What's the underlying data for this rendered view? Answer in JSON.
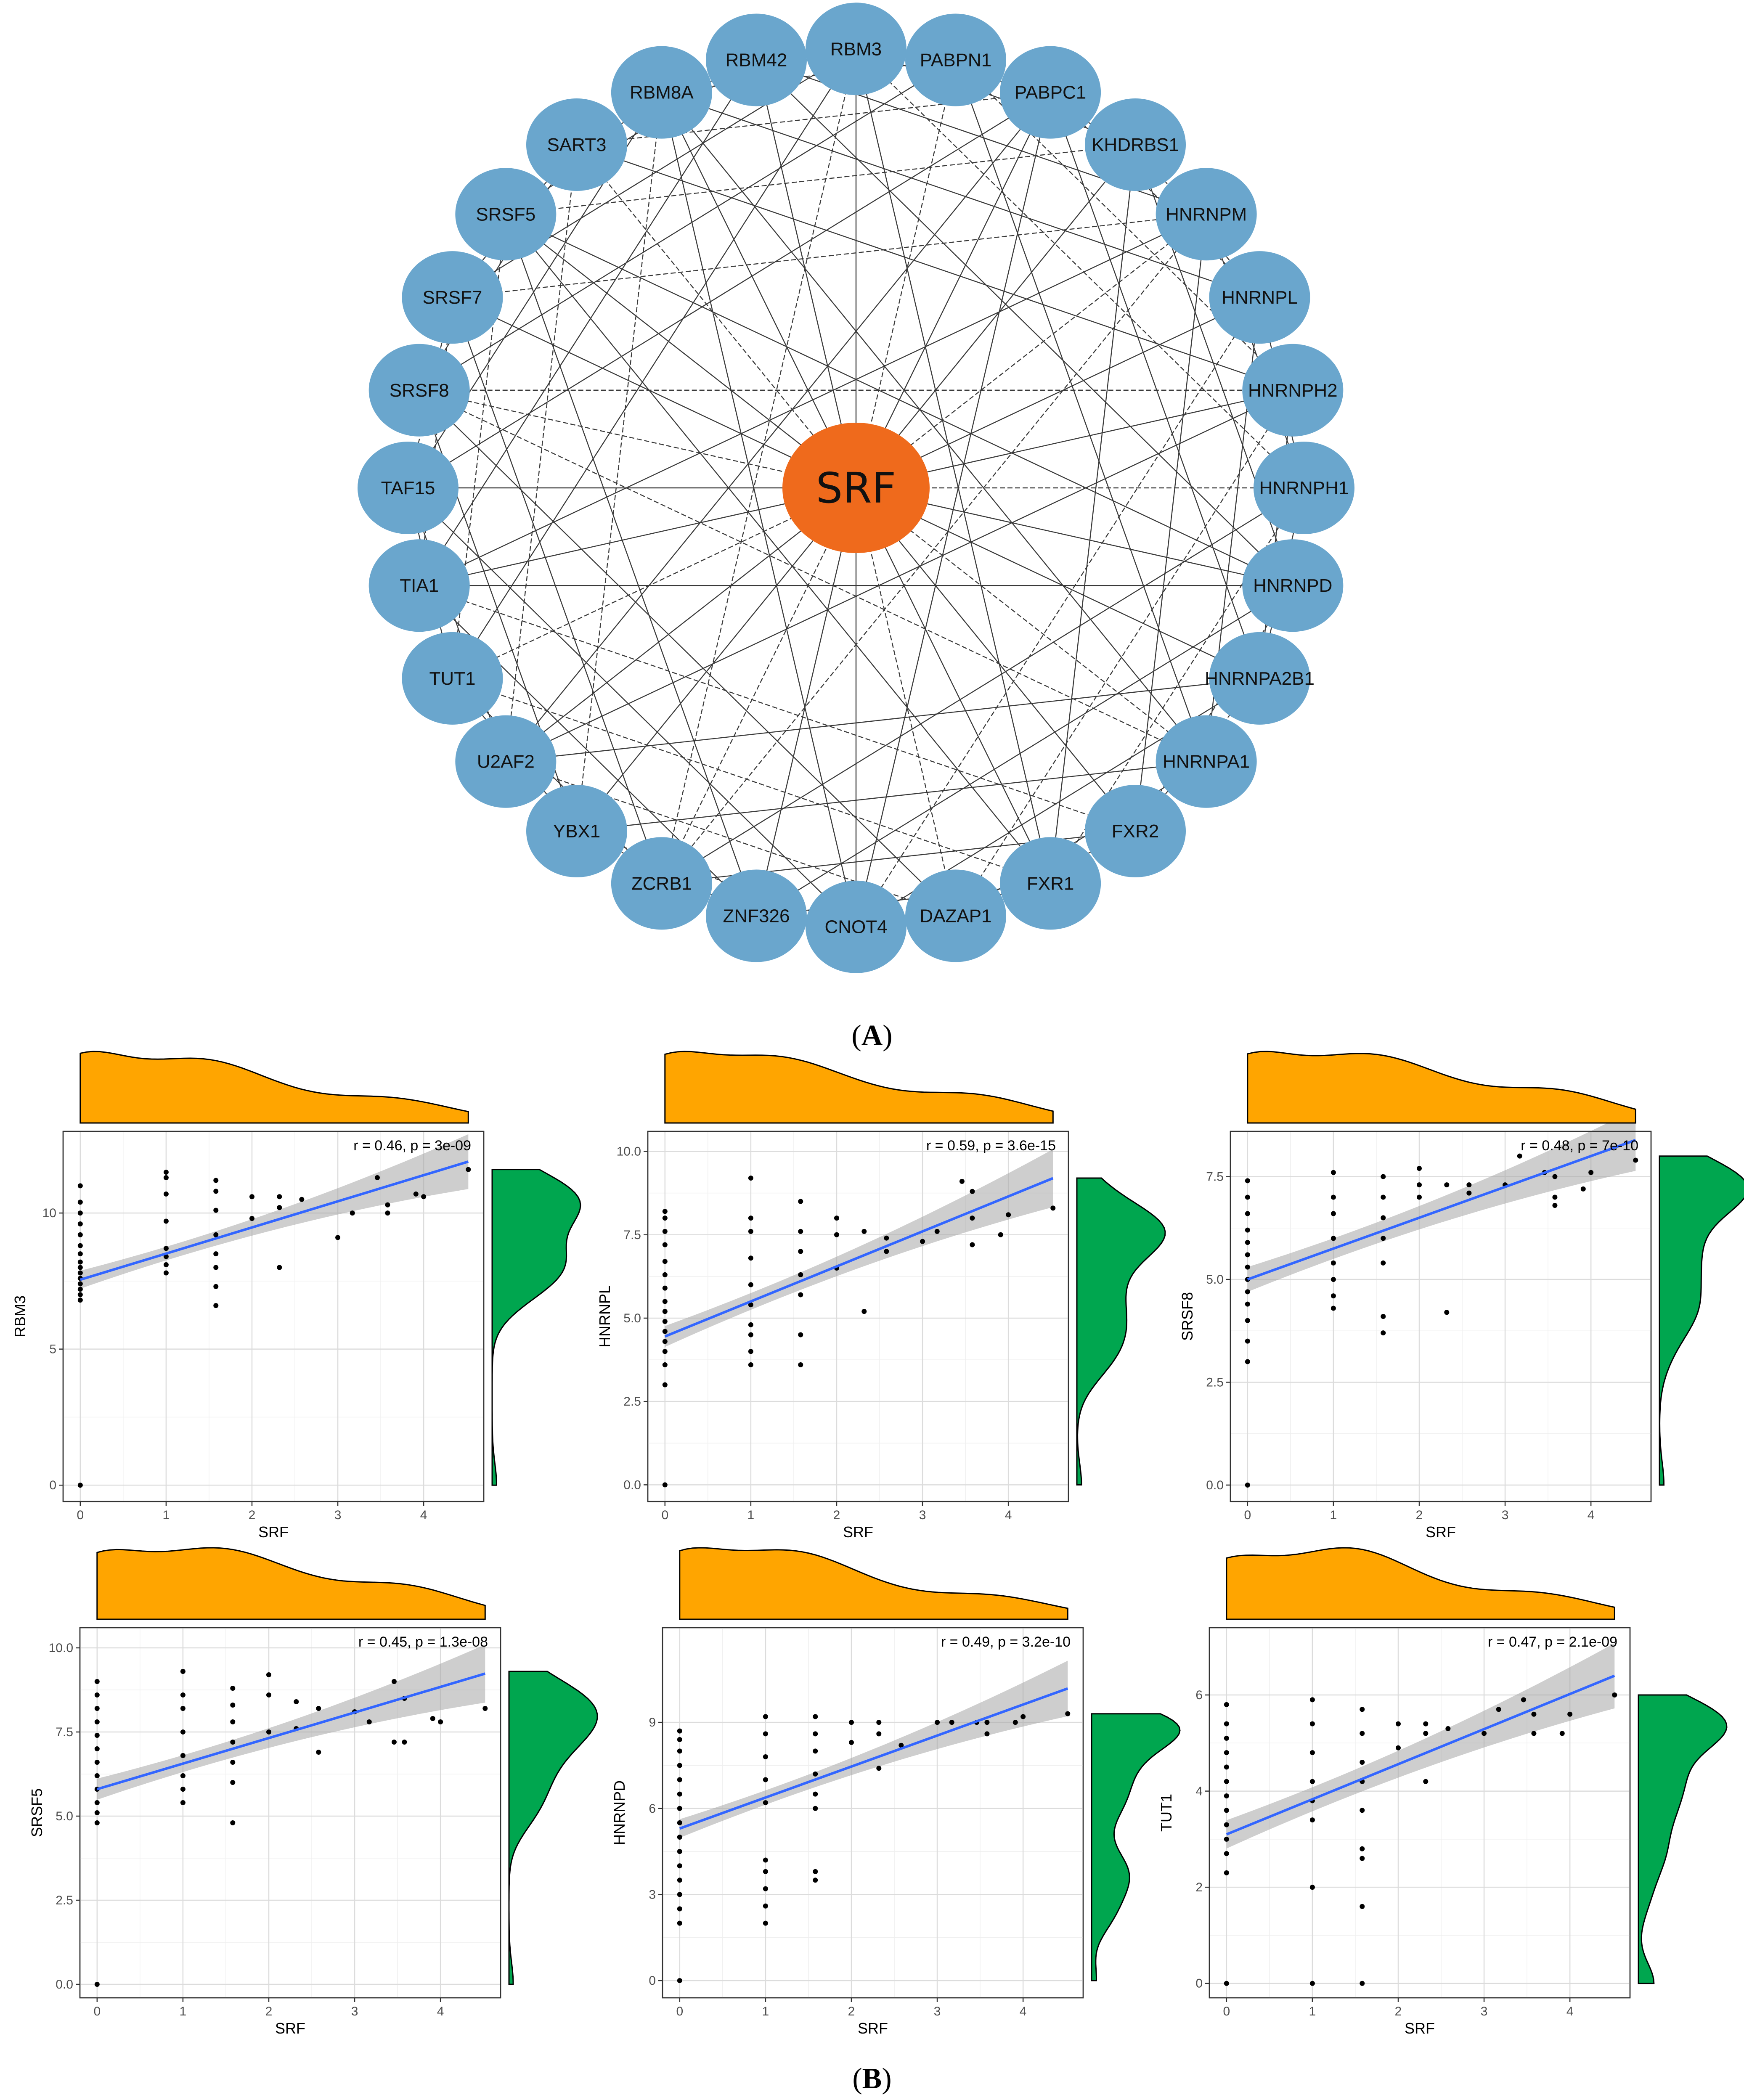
{
  "panel_a": {
    "caption": "A",
    "hub": {
      "label": "SRF",
      "color": "#ef6a1c"
    },
    "node_color": "#6aa6cd",
    "nodes": [
      "RBM3",
      "PABPN1",
      "PABPC1",
      "KHDRBS1",
      "HNRNPM",
      "HNRNPL",
      "HNRNPH2",
      "HNRNPH1",
      "HNRNPD",
      "HNRNPA2B1",
      "HNRNPA1",
      "FXR2",
      "FXR1",
      "DAZAP1",
      "CNOT4",
      "ZNF326",
      "ZCRB1",
      "YBX1",
      "U2AF2",
      "TUT1",
      "TIA1",
      "TAF15",
      "SRSF8",
      "SRSF7",
      "SRSF5",
      "SART3",
      "RBM8A",
      "RBM42"
    ]
  },
  "panel_b": {
    "caption": "B",
    "colors": {
      "fit_line": "#3366ff",
      "ci_band": "#a6a6a6",
      "density_x": "#ffa500",
      "density_y": "#00a64f"
    }
  },
  "chart_data": [
    {
      "type": "scatter",
      "ylabel": "RBM3",
      "xlabel": "SRF",
      "stat": "r = 0.46, p = 3e-09",
      "xlim": [
        -0.2,
        4.7
      ],
      "ylim": [
        -0.6,
        13.0
      ],
      "xticks": [
        0,
        1,
        2,
        3,
        4
      ],
      "yticks": [
        0,
        5,
        10
      ],
      "fit": {
        "intercept": 7.55,
        "slope": 0.96
      },
      "points": [
        [
          0,
          0
        ],
        [
          0,
          6.8
        ],
        [
          0,
          7.0
        ],
        [
          0,
          7.2
        ],
        [
          0,
          7.4
        ],
        [
          0,
          7.6
        ],
        [
          0,
          7.8
        ],
        [
          0,
          8.0
        ],
        [
          0,
          8.2
        ],
        [
          0,
          8.5
        ],
        [
          0,
          8.8
        ],
        [
          0,
          9.2
        ],
        [
          0,
          9.6
        ],
        [
          0,
          10.0
        ],
        [
          0,
          10.4
        ],
        [
          0,
          11.0
        ],
        [
          1,
          7.8
        ],
        [
          1,
          8.1
        ],
        [
          1,
          8.4
        ],
        [
          1,
          8.7
        ],
        [
          1,
          9.7
        ],
        [
          1,
          10.7
        ],
        [
          1,
          11.3
        ],
        [
          1,
          11.5
        ],
        [
          1.58,
          6.6
        ],
        [
          1.58,
          7.3
        ],
        [
          1.58,
          8.0
        ],
        [
          1.58,
          8.5
        ],
        [
          1.58,
          9.2
        ],
        [
          1.58,
          10.1
        ],
        [
          1.58,
          10.8
        ],
        [
          1.58,
          11.2
        ],
        [
          2,
          9.8
        ],
        [
          2,
          10.6
        ],
        [
          2.32,
          8.0
        ],
        [
          2.32,
          10.2
        ],
        [
          2.32,
          10.6
        ],
        [
          2.58,
          10.5
        ],
        [
          3,
          9.1
        ],
        [
          3.17,
          10.0
        ],
        [
          3.46,
          11.3
        ],
        [
          3.58,
          10.0
        ],
        [
          3.58,
          10.3
        ],
        [
          3.91,
          10.7
        ],
        [
          4.0,
          10.6
        ],
        [
          4.52,
          11.6
        ]
      ]
    },
    {
      "type": "scatter",
      "ylabel": "HNRNPL",
      "xlabel": "SRF",
      "stat": "r = 0.59, p = 3.6e-15",
      "xlim": [
        -0.2,
        4.7
      ],
      "ylim": [
        -0.5,
        10.6
      ],
      "xticks": [
        0,
        1,
        2,
        3,
        4
      ],
      "yticks": [
        0.0,
        2.5,
        5.0,
        7.5,
        10.0
      ],
      "ytick_labels": [
        "0.0",
        "2.5",
        "5.0",
        "7.5",
        "10.0"
      ],
      "fit": {
        "intercept": 4.45,
        "slope": 1.05
      },
      "points": [
        [
          0,
          0
        ],
        [
          0,
          3.0
        ],
        [
          0,
          3.6
        ],
        [
          0,
          4.0
        ],
        [
          0,
          4.3
        ],
        [
          0,
          4.6
        ],
        [
          0,
          4.9
        ],
        [
          0,
          5.2
        ],
        [
          0,
          5.5
        ],
        [
          0,
          5.9
        ],
        [
          0,
          6.3
        ],
        [
          0,
          6.7
        ],
        [
          0,
          7.2
        ],
        [
          0,
          7.6
        ],
        [
          0,
          8.0
        ],
        [
          0,
          8.2
        ],
        [
          1,
          3.6
        ],
        [
          1,
          4.0
        ],
        [
          1,
          4.5
        ],
        [
          1,
          4.8
        ],
        [
          1,
          5.4
        ],
        [
          1,
          6.0
        ],
        [
          1,
          6.8
        ],
        [
          1,
          7.6
        ],
        [
          1,
          8.0
        ],
        [
          1,
          9.2
        ],
        [
          1.58,
          3.6
        ],
        [
          1.58,
          4.5
        ],
        [
          1.58,
          5.7
        ],
        [
          1.58,
          6.3
        ],
        [
          1.58,
          7.0
        ],
        [
          1.58,
          7.6
        ],
        [
          1.58,
          8.5
        ],
        [
          2,
          6.5
        ],
        [
          2,
          7.5
        ],
        [
          2,
          8.0
        ],
        [
          2.32,
          5.2
        ],
        [
          2.32,
          7.6
        ],
        [
          2.58,
          7.0
        ],
        [
          2.58,
          7.4
        ],
        [
          3,
          7.3
        ],
        [
          3.17,
          7.6
        ],
        [
          3.46,
          9.1
        ],
        [
          3.58,
          7.2
        ],
        [
          3.58,
          8.0
        ],
        [
          3.58,
          8.8
        ],
        [
          3.91,
          7.5
        ],
        [
          4.0,
          8.1
        ],
        [
          4.52,
          8.3
        ]
      ]
    },
    {
      "type": "scatter",
      "ylabel": "SRSF8",
      "xlabel": "SRF",
      "stat": "r = 0.48, p = 7e-10",
      "xlim": [
        -0.2,
        4.7
      ],
      "ylim": [
        -0.4,
        8.6
      ],
      "xticks": [
        0,
        1,
        2,
        3,
        4
      ],
      "yticks": [
        0.0,
        2.5,
        5.0,
        7.5
      ],
      "ytick_labels": [
        "0.0",
        "2.5",
        "5.0",
        "7.5"
      ],
      "fit": {
        "intercept": 5.0,
        "slope": 0.75
      },
      "points": [
        [
          0,
          0
        ],
        [
          0,
          3.0
        ],
        [
          0,
          3.5
        ],
        [
          0,
          4.0
        ],
        [
          0,
          4.4
        ],
        [
          0,
          4.7
        ],
        [
          0,
          5.0
        ],
        [
          0,
          5.3
        ],
        [
          0,
          5.6
        ],
        [
          0,
          5.9
        ],
        [
          0,
          6.2
        ],
        [
          0,
          6.6
        ],
        [
          0,
          7.0
        ],
        [
          0,
          7.4
        ],
        [
          1,
          4.3
        ],
        [
          1,
          4.6
        ],
        [
          1,
          5.0
        ],
        [
          1,
          5.4
        ],
        [
          1,
          6.0
        ],
        [
          1,
          6.6
        ],
        [
          1,
          7.0
        ],
        [
          1,
          7.6
        ],
        [
          1.58,
          3.7
        ],
        [
          1.58,
          4.1
        ],
        [
          1.58,
          5.4
        ],
        [
          1.58,
          6.0
        ],
        [
          1.58,
          6.5
        ],
        [
          1.58,
          7.0
        ],
        [
          1.58,
          7.5
        ],
        [
          2,
          7.0
        ],
        [
          2,
          7.3
        ],
        [
          2,
          7.7
        ],
        [
          2.32,
          4.2
        ],
        [
          2.32,
          7.3
        ],
        [
          2.58,
          7.1
        ],
        [
          2.58,
          7.3
        ],
        [
          3,
          7.3
        ],
        [
          3.17,
          8.0
        ],
        [
          3.46,
          7.6
        ],
        [
          3.58,
          6.8
        ],
        [
          3.58,
          7.0
        ],
        [
          3.58,
          7.5
        ],
        [
          3.91,
          7.2
        ],
        [
          4.0,
          7.6
        ],
        [
          4.52,
          7.9
        ]
      ]
    },
    {
      "type": "scatter",
      "ylabel": "SRSF5",
      "xlabel": "SRF",
      "stat": "r = 0.45, p = 1.3e-08",
      "xlim": [
        -0.2,
        4.7
      ],
      "ylim": [
        -0.4,
        10.6
      ],
      "xticks": [
        0,
        1,
        2,
        3,
        4
      ],
      "yticks": [
        0.0,
        2.5,
        5.0,
        7.5,
        10.0
      ],
      "ytick_labels": [
        "0.0",
        "2.5",
        "5.0",
        "7.5",
        "10.0"
      ],
      "fit": {
        "intercept": 5.8,
        "slope": 0.76
      },
      "points": [
        [
          0,
          0
        ],
        [
          0,
          4.8
        ],
        [
          0,
          5.1
        ],
        [
          0,
          5.4
        ],
        [
          0,
          5.8
        ],
        [
          0,
          6.2
        ],
        [
          0,
          6.6
        ],
        [
          0,
          7.0
        ],
        [
          0,
          7.4
        ],
        [
          0,
          7.8
        ],
        [
          0,
          8.2
        ],
        [
          0,
          8.6
        ],
        [
          0,
          9.0
        ],
        [
          1,
          5.4
        ],
        [
          1,
          5.8
        ],
        [
          1,
          6.2
        ],
        [
          1,
          6.8
        ],
        [
          1,
          7.5
        ],
        [
          1,
          8.2
        ],
        [
          1,
          8.6
        ],
        [
          1,
          9.3
        ],
        [
          1.58,
          4.8
        ],
        [
          1.58,
          6.0
        ],
        [
          1.58,
          6.6
        ],
        [
          1.58,
          7.2
        ],
        [
          1.58,
          7.8
        ],
        [
          1.58,
          8.3
        ],
        [
          1.58,
          8.8
        ],
        [
          2,
          7.5
        ],
        [
          2,
          8.6
        ],
        [
          2,
          9.2
        ],
        [
          2.32,
          7.6
        ],
        [
          2.32,
          8.4
        ],
        [
          2.58,
          6.9
        ],
        [
          2.58,
          8.2
        ],
        [
          3,
          8.1
        ],
        [
          3.17,
          7.8
        ],
        [
          3.46,
          7.2
        ],
        [
          3.46,
          9.0
        ],
        [
          3.58,
          7.2
        ],
        [
          3.58,
          8.5
        ],
        [
          3.91,
          7.9
        ],
        [
          4.0,
          7.8
        ],
        [
          4.52,
          8.2
        ]
      ]
    },
    {
      "type": "scatter",
      "ylabel": "HNRNPD",
      "xlabel": "SRF",
      "stat": "r = 0.49, p = 3.2e-10",
      "xlim": [
        -0.2,
        4.7
      ],
      "ylim": [
        -0.6,
        12.3
      ],
      "xticks": [
        0,
        1,
        2,
        3,
        4
      ],
      "yticks": [
        0,
        3,
        6,
        9
      ],
      "fit": {
        "intercept": 5.3,
        "slope": 1.08
      },
      "points": [
        [
          0,
          0
        ],
        [
          0,
          2.0
        ],
        [
          0,
          2.5
        ],
        [
          0,
          3.0
        ],
        [
          0,
          3.5
        ],
        [
          0,
          4.0
        ],
        [
          0,
          4.5
        ],
        [
          0,
          5.0
        ],
        [
          0,
          5.5
        ],
        [
          0,
          6.0
        ],
        [
          0,
          6.5
        ],
        [
          0,
          7.0
        ],
        [
          0,
          7.5
        ],
        [
          0,
          8.0
        ],
        [
          0,
          8.4
        ],
        [
          0,
          8.7
        ],
        [
          1,
          2.0
        ],
        [
          1,
          2.6
        ],
        [
          1,
          3.2
        ],
        [
          1,
          3.8
        ],
        [
          1,
          4.2
        ],
        [
          1,
          6.2
        ],
        [
          1,
          7.0
        ],
        [
          1,
          7.8
        ],
        [
          1,
          8.6
        ],
        [
          1,
          9.2
        ],
        [
          1.58,
          3.5
        ],
        [
          1.58,
          3.8
        ],
        [
          1.58,
          6.0
        ],
        [
          1.58,
          6.5
        ],
        [
          1.58,
          7.2
        ],
        [
          1.58,
          8.0
        ],
        [
          1.58,
          8.6
        ],
        [
          1.58,
          9.2
        ],
        [
          2,
          8.3
        ],
        [
          2,
          9.0
        ],
        [
          2.32,
          7.4
        ],
        [
          2.32,
          8.6
        ],
        [
          2.32,
          9.0
        ],
        [
          2.58,
          8.2
        ],
        [
          3,
          9.0
        ],
        [
          3.17,
          9.0
        ],
        [
          3.46,
          9.0
        ],
        [
          3.58,
          8.6
        ],
        [
          3.58,
          9.0
        ],
        [
          3.91,
          9.0
        ],
        [
          4.0,
          9.2
        ],
        [
          4.52,
          9.3
        ]
      ]
    },
    {
      "type": "scatter",
      "ylabel": "TUT1",
      "xlabel": "SRF",
      "stat": "r = 0.47, p = 2.1e-09",
      "xlim": [
        -0.2,
        4.7
      ],
      "ylim": [
        -0.3,
        7.4
      ],
      "xticks": [
        0,
        1,
        2,
        3,
        4
      ],
      "yticks": [
        0,
        2,
        4,
        6
      ],
      "fit": {
        "intercept": 3.1,
        "slope": 0.73
      },
      "points": [
        [
          0,
          0
        ],
        [
          0,
          2.3
        ],
        [
          0,
          2.7
        ],
        [
          0,
          3.0
        ],
        [
          0,
          3.3
        ],
        [
          0,
          3.6
        ],
        [
          0,
          3.9
        ],
        [
          0,
          4.2
        ],
        [
          0,
          4.5
        ],
        [
          0,
          4.8
        ],
        [
          0,
          5.1
        ],
        [
          0,
          5.4
        ],
        [
          0,
          5.8
        ],
        [
          1,
          0
        ],
        [
          1,
          2.0
        ],
        [
          1,
          3.4
        ],
        [
          1,
          3.8
        ],
        [
          1,
          4.2
        ],
        [
          1,
          4.8
        ],
        [
          1,
          5.4
        ],
        [
          1,
          5.9
        ],
        [
          1.58,
          0
        ],
        [
          1.58,
          1.6
        ],
        [
          1.58,
          2.6
        ],
        [
          1.58,
          2.8
        ],
        [
          1.58,
          3.6
        ],
        [
          1.58,
          4.2
        ],
        [
          1.58,
          4.6
        ],
        [
          1.58,
          5.2
        ],
        [
          1.58,
          5.7
        ],
        [
          2,
          4.9
        ],
        [
          2,
          5.4
        ],
        [
          2.32,
          4.2
        ],
        [
          2.32,
          5.2
        ],
        [
          2.32,
          5.4
        ],
        [
          2.58,
          5.3
        ],
        [
          3,
          5.2
        ],
        [
          3.17,
          5.7
        ],
        [
          3.46,
          5.9
        ],
        [
          3.58,
          5.2
        ],
        [
          3.58,
          5.6
        ],
        [
          3.91,
          5.2
        ],
        [
          4.0,
          5.6
        ],
        [
          4.52,
          6.0
        ]
      ]
    }
  ]
}
